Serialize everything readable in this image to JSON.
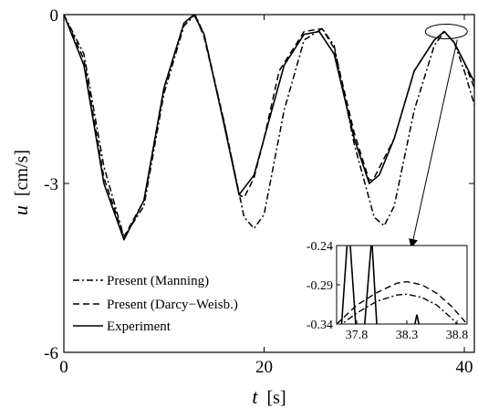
{
  "chart_data": {
    "type": "line",
    "xlabel": {
      "symbol": "t",
      "unit": "[s]"
    },
    "ylabel": {
      "symbol": "u",
      "unit": "[cm/s]"
    },
    "xlim": [
      0,
      41
    ],
    "ylim": [
      -6,
      0
    ],
    "x_ticks": [
      "0",
      "20",
      "40"
    ],
    "y_ticks": [
      "0",
      "-3",
      "-6"
    ],
    "x_tick_values": [
      0,
      20,
      40
    ],
    "y_tick_values": [
      0,
      -3,
      -6
    ],
    "grid": false,
    "legend": {
      "placement": "lower-left",
      "entries": [
        "Present (Manning)",
        "Present (Darcy−Weisb.)",
        "Experiment"
      ]
    },
    "series": [
      {
        "name": "Present (Manning)",
        "style": "dash-dot",
        "x": [
          0,
          2,
          4,
          6,
          8,
          10,
          12,
          13.1,
          14,
          16,
          18,
          19,
          20,
          22,
          24,
          25.8,
          27,
          29,
          31,
          32,
          33,
          35,
          37,
          38,
          39,
          40,
          41
        ],
        "y": [
          0,
          -0.7,
          -2.7,
          -3.95,
          -3.4,
          -1.4,
          -0.2,
          0,
          -0.35,
          -1.9,
          -3.6,
          -3.8,
          -3.55,
          -1.7,
          -0.45,
          -0.25,
          -0.55,
          -2.3,
          -3.6,
          -3.75,
          -3.4,
          -1.7,
          -0.55,
          -0.3,
          -0.5,
          -1.0,
          -1.6
        ]
      },
      {
        "name": "Present (Darcy−Weisb.)",
        "style": "dashed",
        "x": [
          0,
          2,
          4,
          6,
          8,
          10,
          12,
          13.1,
          14,
          16,
          17.5,
          18,
          19,
          20,
          21.5,
          24,
          25.8,
          27,
          29,
          30.5,
          31,
          33,
          35,
          37,
          38,
          39,
          40,
          41
        ],
        "y": [
          0,
          -0.8,
          -2.9,
          -3.95,
          -3.3,
          -1.3,
          -0.15,
          0,
          -0.4,
          -1.9,
          -3.2,
          -3.25,
          -2.9,
          -2.2,
          -1.0,
          -0.3,
          -0.25,
          -0.6,
          -2.1,
          -2.95,
          -2.9,
          -2.2,
          -1.0,
          -0.45,
          -0.3,
          -0.5,
          -0.85,
          -1.3
        ]
      },
      {
        "name": "Experiment",
        "style": "solid",
        "x": [
          0,
          2,
          4,
          6,
          8,
          10,
          12,
          13,
          14,
          16,
          17.5,
          19,
          20,
          22,
          24,
          25.5,
          27,
          29,
          30.5,
          31.5,
          33,
          35,
          37,
          38,
          39,
          40,
          41
        ],
        "y": [
          0,
          -0.9,
          -3.0,
          -4.0,
          -3.3,
          -1.3,
          -0.15,
          0,
          -0.35,
          -1.95,
          -3.2,
          -2.85,
          -2.2,
          -0.9,
          -0.35,
          -0.3,
          -0.7,
          -2.2,
          -3.0,
          -2.85,
          -2.2,
          -1.0,
          -0.45,
          -0.3,
          -0.5,
          -0.85,
          -1.2
        ]
      }
    ],
    "inset": {
      "xlim": [
        37.6,
        38.9
      ],
      "ylim": [
        -0.34,
        -0.24
      ],
      "x_ticks": [
        "37.8",
        "38.3",
        "38.8"
      ],
      "x_tick_values": [
        37.8,
        38.3,
        38.8
      ],
      "y_ticks": [
        "-0.24",
        "-0.29",
        "-0.34"
      ],
      "y_tick_values": [
        -0.24,
        -0.29,
        -0.34
      ],
      "zoom_center": {
        "t": 38.2,
        "u": -0.3
      },
      "series": [
        {
          "name": "Present (Manning)",
          "style": "dash-dot",
          "x": [
            37.6,
            37.8,
            38.0,
            38.2,
            38.3,
            38.45,
            38.6,
            38.75,
            38.9
          ],
          "y": [
            -0.345,
            -0.326,
            -0.311,
            -0.303,
            -0.302,
            -0.306,
            -0.316,
            -0.333,
            -0.355
          ]
        },
        {
          "name": "Present (Darcy−Weisb.)",
          "style": "dashed",
          "x": [
            37.6,
            37.8,
            38.0,
            38.2,
            38.3,
            38.45,
            38.6,
            38.75,
            38.9
          ],
          "y": [
            -0.34,
            -0.316,
            -0.3,
            -0.288,
            -0.286,
            -0.29,
            -0.301,
            -0.318,
            -0.34
          ]
        },
        {
          "name": "Experiment",
          "style": "solid",
          "segments": [
            {
              "x": [
                37.65,
                37.72,
                37.79
              ],
              "y": [
                -0.34,
                -0.21,
                -0.34
              ]
            },
            {
              "x": [
                37.88,
                37.95,
                38.0
              ],
              "y": [
                -0.34,
                -0.23,
                -0.34
              ]
            },
            {
              "x": [
                38.38,
                38.4,
                38.42
              ],
              "y": [
                -0.34,
                -0.328,
                -0.34
              ]
            }
          ]
        }
      ]
    }
  }
}
